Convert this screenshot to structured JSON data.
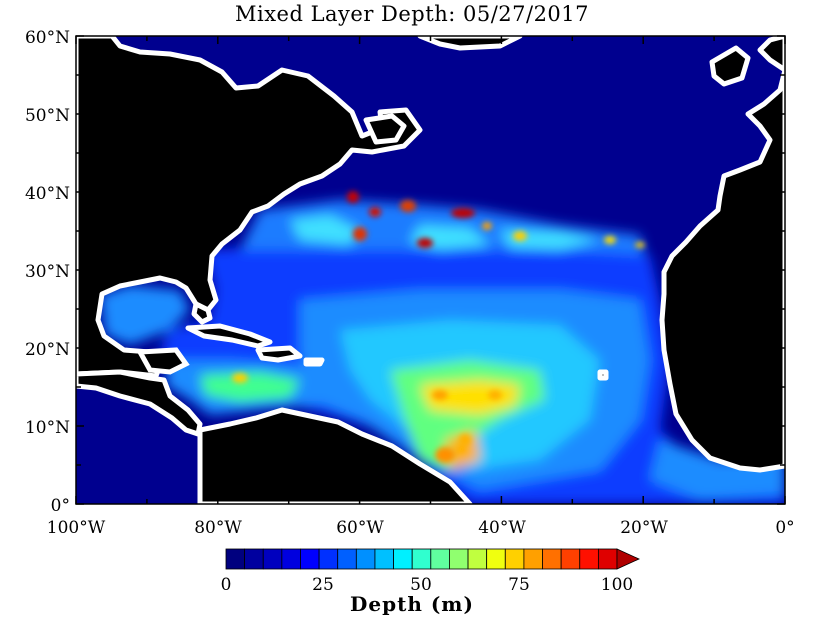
{
  "title": "Mixed Layer Depth: 05/27/2017",
  "lat_labels": [
    "60°N",
    "50°N",
    "40°N",
    "30°N",
    "20°N",
    "10°N",
    "0°"
  ],
  "lon_labels": [
    "100°W",
    "80°W",
    "60°W",
    "40°W",
    "20°W",
    "0°"
  ],
  "map": {
    "lon_range": [
      -100,
      0
    ],
    "lat_range": [
      0,
      60
    ],
    "land_color": "#000000",
    "shallow_color": "#00008f",
    "coast_color": "#ffffff"
  },
  "colorbar": {
    "label": "Depth (m)",
    "tick_labels": [
      "0",
      "25",
      "50",
      "75",
      "100"
    ],
    "range": [
      0,
      100
    ],
    "extend": "max",
    "colors": [
      "#00007f",
      "#00009f",
      "#0000bf",
      "#0000df",
      "#0000ff",
      "#0030ff",
      "#0060ff",
      "#0090ff",
      "#00c0ff",
      "#00f0ff",
      "#30ffcf",
      "#60ff9f",
      "#90ff6f",
      "#c0ff3f",
      "#f0ff0f",
      "#ffd000",
      "#ffa000",
      "#ff7000",
      "#ff4000",
      "#ff1000",
      "#df0000",
      "#b00000"
    ]
  }
}
